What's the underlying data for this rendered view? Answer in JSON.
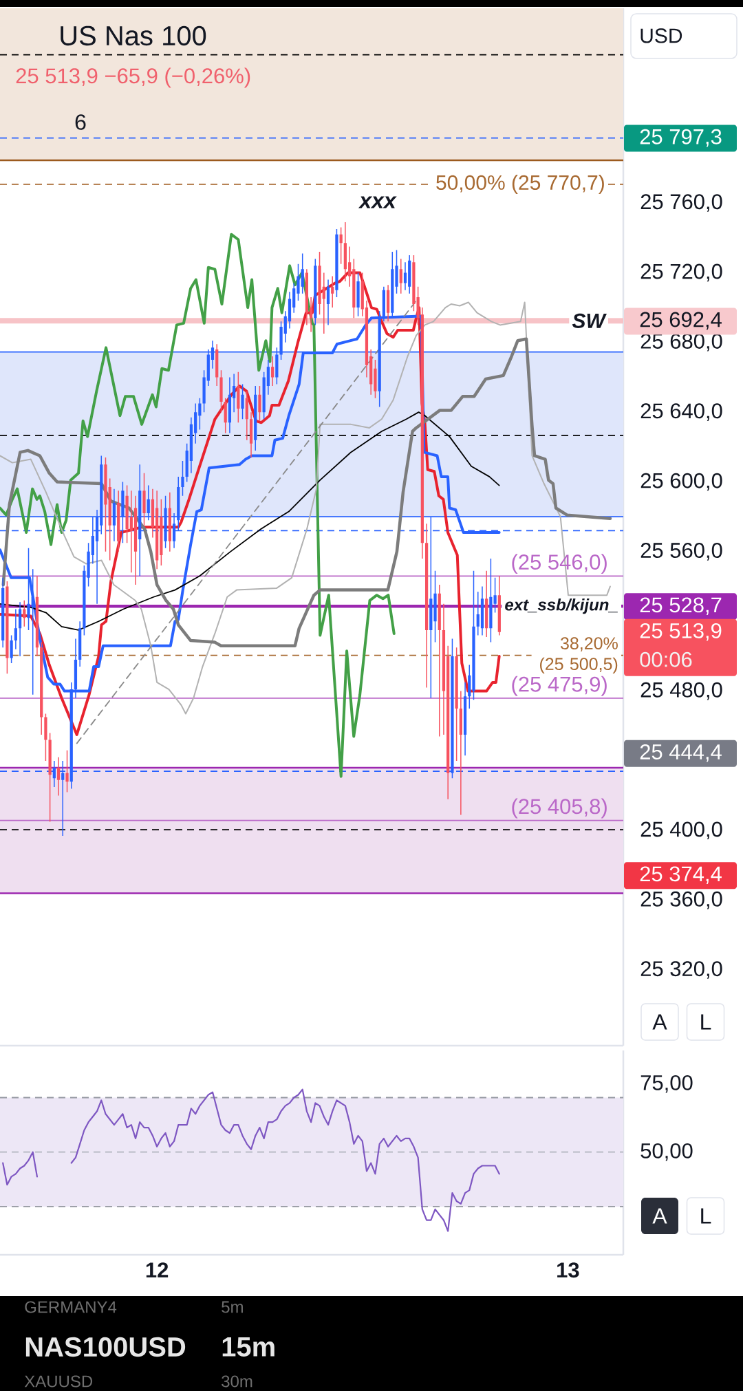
{
  "chart_data": [
    {
      "type": "candlestick",
      "title": "US Nas 100",
      "subtitle": "25 513,9 −65,9 (−0,26%)",
      "x": [
        11.625,
        11.6354,
        11.6458,
        11.6563,
        11.6667,
        11.6771,
        11.6875,
        11.6979,
        11.7083,
        11.7188,
        11.7292,
        11.7396,
        11.75,
        11.7604,
        11.7708,
        11.7813,
        11.7917,
        11.8021,
        11.8125,
        11.8229,
        11.8333,
        11.8438,
        11.8542,
        11.8646,
        11.875,
        11.8854,
        11.8958,
        11.9063,
        11.9167,
        11.9271,
        11.9375,
        11.9479,
        11.9583,
        11.9688,
        11.9792,
        11.9896,
        12,
        12.0104,
        12.0208,
        12.0313,
        12.0417,
        12.0521,
        12.0625,
        12.0729,
        12.0833,
        12.0938,
        12.1042,
        12.1146,
        12.125,
        12.1354,
        12.1458,
        12.1563,
        12.1667,
        12.1771,
        12.1875,
        12.1979,
        12.2083,
        12.2188,
        12.2292,
        12.2396,
        12.25,
        12.2604,
        12.2708,
        12.2813,
        12.2917,
        12.3021,
        12.3125,
        12.3229,
        12.3333,
        12.3438,
        12.3542,
        12.3646,
        12.375,
        12.3854,
        12.3958,
        12.4063,
        12.4167,
        12.4271,
        12.4375,
        12.4479,
        12.4583,
        12.4688,
        12.4792,
        12.4896,
        12.5,
        12.5104,
        12.5208,
        12.5313,
        12.5417,
        12.5521,
        12.5625,
        12.5729,
        12.5833,
        12.5938,
        12.6042,
        12.6146,
        12.625,
        12.6354,
        12.6458,
        12.6563,
        12.6667,
        12.6771,
        12.6875,
        12.6979,
        12.7083,
        12.7188,
        12.7292,
        12.7396,
        12.75,
        12.7604,
        12.7708,
        12.7813,
        12.7917,
        12.8021,
        12.8125,
        12.8229,
        12.8333
      ],
      "ohlc": [
        [
          25509,
          25545,
          25505,
          25539
        ],
        [
          25540,
          25543,
          25490,
          25499
        ],
        [
          25499,
          25512,
          25496,
          25509
        ],
        [
          25509,
          25527,
          25504,
          25516
        ],
        [
          25516,
          25531,
          25500,
          25527
        ],
        [
          25527,
          25532,
          25517,
          25522
        ],
        [
          25522,
          25562,
          25515,
          25530
        ],
        [
          25528,
          25550,
          25478,
          25534
        ],
        [
          25534,
          25546,
          25500,
          25505
        ],
        [
          25505,
          25508,
          25455,
          25465
        ],
        [
          25465,
          25467,
          25440,
          25452
        ],
        [
          25452,
          25456,
          25405,
          25432
        ],
        [
          25430,
          25440,
          25425,
          25436
        ],
        [
          25436,
          25442,
          25420,
          25429
        ],
        [
          25429,
          25440,
          25397,
          25433
        ],
        [
          25433,
          25446,
          25422,
          25428
        ],
        [
          25428,
          25485,
          25424,
          25481
        ],
        [
          25481,
          25510,
          25476,
          25498
        ],
        [
          25498,
          25520,
          25494,
          25516
        ],
        [
          25516,
          25552,
          25512,
          25549
        ],
        [
          25545,
          25565,
          25540,
          25560
        ],
        [
          25558,
          25580,
          25553,
          25569
        ],
        [
          25566,
          25584,
          25530,
          25580
        ],
        [
          25575,
          25615,
          25570,
          25610
        ],
        [
          25610,
          25614,
          25560,
          25587
        ],
        [
          25597,
          25602,
          25555,
          25575
        ],
        [
          25575,
          25596,
          25566,
          25588
        ],
        [
          25588,
          25595,
          25560,
          25566
        ],
        [
          25580,
          25600,
          25565,
          25595
        ],
        [
          25592,
          25598,
          25565,
          25573
        ],
        [
          25580,
          25595,
          25548,
          25572
        ],
        [
          25585,
          25592,
          25541,
          25560
        ],
        [
          25567,
          25610,
          25546,
          25595
        ],
        [
          25595,
          25605,
          25575,
          25582
        ],
        [
          25582,
          25598,
          25578,
          25590
        ],
        [
          25590,
          25596,
          25568,
          25574
        ],
        [
          25585,
          25595,
          25550,
          25555
        ],
        [
          25580,
          25590,
          25552,
          25558
        ],
        [
          25566,
          25592,
          25562,
          25585
        ],
        [
          25585,
          25594,
          25560,
          25566
        ],
        [
          25566,
          25582,
          25562,
          25576
        ],
        [
          25578,
          25603,
          25572,
          25597
        ],
        [
          25597,
          25612,
          25592,
          25603
        ],
        [
          25603,
          25622,
          25600,
          25618
        ],
        [
          25612,
          25637,
          25605,
          25633
        ],
        [
          25628,
          25645,
          25622,
          25640
        ],
        [
          25638,
          25648,
          25630,
          25645
        ],
        [
          25645,
          25664,
          25640,
          25660
        ],
        [
          25658,
          25676,
          25655,
          25673
        ],
        [
          25670,
          25681,
          25665,
          25677
        ],
        [
          25676,
          25679,
          25655,
          25660
        ],
        [
          25660,
          25664,
          25640,
          25646
        ],
        [
          25646,
          25648,
          25628,
          25634
        ],
        [
          25634,
          25660,
          25628,
          25650
        ],
        [
          25648,
          25662,
          25640,
          25655
        ],
        [
          25655,
          25663,
          25634,
          25642
        ],
        [
          25642,
          25656,
          25636,
          25650
        ],
        [
          25648,
          25652,
          25624,
          25636
        ],
        [
          25636,
          25640,
          25614,
          25622
        ],
        [
          25624,
          25655,
          25618,
          25650
        ],
        [
          25650,
          25655,
          25635,
          25640
        ],
        [
          25640,
          25663,
          25636,
          25660
        ],
        [
          25655,
          25670,
          25650,
          25666
        ],
        [
          25666,
          25672,
          25655,
          25660
        ],
        [
          25660,
          25677,
          25656,
          25673
        ],
        [
          25673,
          25692,
          25670,
          25689
        ],
        [
          25685,
          25698,
          25680,
          25695
        ],
        [
          25692,
          25709,
          25688,
          25705
        ],
        [
          25700,
          25714,
          25697,
          25711
        ],
        [
          25708,
          25725,
          25704,
          25718
        ],
        [
          25712,
          25731,
          25708,
          25722
        ],
        [
          25720,
          25722,
          25690,
          25697
        ],
        [
          25700,
          25706,
          25686,
          25694
        ],
        [
          25694,
          25728,
          25690,
          25724
        ],
        [
          25724,
          25732,
          25696,
          25702
        ],
        [
          25712,
          25720,
          25685,
          25705
        ],
        [
          25702,
          25716,
          25690,
          25712
        ],
        [
          25712,
          25718,
          25700,
          25708
        ],
        [
          25710,
          25745,
          25706,
          25742
        ],
        [
          25742,
          25746,
          25725,
          25737
        ],
        [
          25737,
          25749,
          25715,
          25722
        ],
        [
          25726,
          25735,
          25712,
          25718
        ],
        [
          25722,
          25728,
          25694,
          25700
        ],
        [
          25700,
          25720,
          25695,
          25715
        ],
        [
          25715,
          25720,
          25695,
          25699
        ],
        [
          25700,
          25704,
          25660,
          25667
        ],
        [
          25672,
          25676,
          25650,
          25656
        ],
        [
          25665,
          25670,
          25648,
          25652
        ],
        [
          25652,
          25698,
          25643,
          25695
        ],
        [
          25695,
          25712,
          25692,
          25710
        ],
        [
          25710,
          25713,
          25692,
          25697
        ],
        [
          25697,
          25732,
          25694,
          25722
        ],
        [
          25712,
          25733,
          25708,
          25724
        ],
        [
          25722,
          25728,
          25708,
          25714
        ],
        [
          25714,
          25726,
          25710,
          25720
        ],
        [
          25712,
          25730,
          25708,
          25727
        ],
        [
          25726,
          25730,
          25698,
          25702
        ],
        [
          25706,
          25712,
          25690,
          25694
        ],
        [
          25696,
          25700,
          25556,
          25565
        ],
        [
          25565,
          25576,
          25482,
          25515
        ],
        [
          25515,
          25580,
          25476,
          25533
        ],
        [
          25520,
          25549,
          25508,
          25536
        ],
        [
          25536,
          25541,
          25454,
          25515
        ],
        [
          25515,
          25530,
          25455,
          25480
        ],
        [
          25500,
          25506,
          25418,
          25433
        ],
        [
          25433,
          25510,
          25430,
          25500
        ],
        [
          25500,
          25505,
          25440,
          25470
        ],
        [
          25470,
          25480,
          25409,
          25455
        ],
        [
          25455,
          25485,
          25443,
          25477
        ],
        [
          25477,
          25495,
          25470,
          25489
        ],
        [
          25480,
          25549,
          25475,
          25517
        ],
        [
          25517,
          25537,
          25512,
          25524
        ],
        [
          25516,
          25540,
          25512,
          25533
        ],
        [
          25533,
          25549,
          25511,
          25516
        ],
        [
          25516,
          25556,
          25508,
          25534
        ],
        [
          25530,
          25545,
          25525,
          25535
        ],
        [
          25535,
          25546,
          25512,
          25513.9
        ]
      ],
      "series": [
        {
          "type": "line",
          "color": "#43a047",
          "x": [
            11.618,
            11.633,
            11.648,
            11.66,
            11.675,
            11.682,
            11.697,
            11.708,
            11.715,
            11.727,
            11.742,
            11.757,
            11.768,
            11.779,
            11.79,
            11.809,
            11.82,
            11.831,
            11.853,
            11.876,
            11.91,
            11.923,
            11.943,
            11.963,
            11.989,
            11.998,
            12.012,
            12.028,
            12.048,
            12.065,
            12.082,
            12.095,
            12.115,
            12.125,
            12.141,
            12.158,
            12.181,
            12.198,
            12.221,
            12.231,
            12.248,
            12.265,
            12.275,
            12.28,
            12.294,
            12.304,
            12.323,
            12.336,
            12.353,
            12.378,
            12.382,
            12.397,
            12.418,
            12.448,
            12.462,
            12.479,
            12.494,
            12.518,
            12.535,
            12.55,
            12.563,
            12.577
          ],
          "values": [
            25585,
            25581,
            25590,
            25596,
            25579,
            25571,
            25596,
            25590,
            25592,
            25583,
            25564,
            25587,
            25571,
            25578,
            25601,
            25605,
            25635,
            25626,
            25652,
            25677,
            25638,
            25649,
            25649,
            25633,
            25650,
            25643,
            25665,
            25664,
            25690,
            25691,
            25711,
            25716,
            25691,
            25723,
            25722,
            25702,
            25742,
            25739,
            25700,
            25716,
            25664,
            25681,
            25669,
            25700,
            25711,
            25697,
            25724,
            25713,
            25720,
            25691,
            25690,
            25512,
            25535,
            25431,
            25503,
            25454,
            25478,
            25532,
            25535,
            25533,
            25535,
            25513
          ]
        },
        {
          "type": "line",
          "color": "#e8232e",
          "x": [
            11.618,
            11.693,
            11.715,
            11.738,
            11.768,
            11.805,
            11.835,
            11.858,
            11.865,
            11.876,
            11.888,
            11.913,
            11.962,
            12.052,
            12.059,
            12.078,
            12.097,
            12.119,
            12.141,
            12.181,
            12.201,
            12.218,
            12.241,
            12.254,
            12.274,
            12.28,
            12.297,
            12.32,
            12.343,
            12.363,
            12.378,
            12.385,
            12.406,
            12.433,
            12.445,
            12.465,
            12.494,
            12.508,
            12.522,
            12.535,
            12.547,
            12.56,
            12.575,
            12.586,
            12.624,
            12.631,
            12.638,
            12.645,
            12.652,
            12.659,
            12.675,
            12.686,
            12.697,
            12.708,
            12.731,
            12.742,
            12.757,
            12.802,
            12.817,
            12.825,
            12.833
          ],
          "values": [
            25524,
            25523,
            25513,
            25495,
            25476,
            25455,
            25478,
            25500,
            25518,
            25520,
            25543,
            25571,
            25574,
            25574,
            25577,
            25590,
            25604,
            25620,
            25636,
            25650,
            25655,
            25652,
            25635,
            25634,
            25638,
            25644,
            25644,
            25658,
            25680,
            25697,
            25697,
            25707,
            25710,
            25714,
            25715,
            25720,
            25720,
            25710,
            25700,
            25699,
            25692,
            25685,
            25683,
            25687,
            25687,
            25694,
            25700,
            25645,
            25634,
            25607,
            25606,
            25592,
            25590,
            25571,
            25558,
            25496,
            25480,
            25480,
            25485,
            25485,
            25500
          ]
        },
        {
          "type": "line",
          "color": "#2962ff",
          "x": [
            11.618,
            11.645,
            11.69,
            11.701,
            11.715,
            11.734,
            11.749,
            11.764,
            11.775,
            11.835,
            11.846,
            11.858,
            11.869,
            12.033,
            12.044,
            12.052,
            12.063,
            12.082,
            12.097,
            12.108,
            12.127,
            12.201,
            12.216,
            12.231,
            12.28,
            12.287,
            12.306,
            12.321,
            12.346,
            12.356,
            12.427,
            12.438,
            12.487,
            12.508,
            12.522,
            12.631,
            12.643,
            12.65,
            12.682,
            12.692,
            12.708,
            12.712,
            12.727,
            12.746,
            12.833
          ],
          "values": [
            25561,
            25545,
            25545,
            25530,
            25510,
            25488,
            25484,
            25484,
            25480,
            25480,
            25494,
            25494,
            25506,
            25506,
            25520,
            25521,
            25538,
            25564,
            25583,
            25584,
            25608,
            25610,
            25613,
            25615,
            25615,
            25624,
            25625,
            25638,
            25656,
            25674,
            25674,
            25679,
            25682,
            25690,
            25694,
            25695,
            25695,
            25617,
            25615,
            25603,
            25603,
            25585,
            25584,
            25571,
            25571
          ]
        },
        {
          "type": "line",
          "color": "#000000",
          "x": [
            11.618,
            11.693,
            11.73,
            11.768,
            11.809,
            11.858,
            11.918,
            11.992,
            12.044,
            12.104,
            12.179,
            12.253,
            12.321,
            12.397,
            12.472,
            12.547,
            12.607,
            12.637,
            12.652,
            12.712,
            12.765,
            12.809,
            12.833
          ],
          "values": [
            25530,
            25528,
            25525,
            25517,
            25515,
            25520,
            25527,
            25534,
            25538,
            25546,
            25560,
            25573,
            25583,
            25601,
            25617,
            25629,
            25636,
            25640,
            25638,
            25626,
            25609,
            25603,
            25598
          ]
        },
        {
          "type": "line",
          "color": "#b2b2b2",
          "x": [
            11.618,
            11.648,
            11.693,
            11.73,
            11.775,
            11.798,
            11.828,
            11.865,
            11.895,
            11.947,
            11.962,
            11.985,
            12,
            12.029,
            12.059,
            12.07,
            12.089,
            12.111,
            12.141,
            12.171,
            12.194,
            12.291,
            12.328,
            12.365,
            12.388,
            12.397,
            12.472,
            12.517,
            12.547,
            12.575,
            12.61,
            12.631,
            12.652,
            12.673,
            12.702,
            12.716,
            12.737,
            12.758,
            12.779,
            12.814,
            12.835,
            12.885,
            12.895,
            12.913,
            12.942,
            12.982,
            13.001,
            13.095,
            13.103
          ],
          "values": [
            25615,
            25611,
            25613,
            25594,
            25569,
            25557,
            25553,
            25555,
            25541,
            25532,
            25527,
            25506,
            25485,
            25481,
            25472,
            25467,
            25476,
            25494,
            25513,
            25534,
            25538,
            25539,
            25545,
            25573,
            25596,
            25633,
            25633,
            25631,
            25636,
            25647,
            25672,
            25684,
            25690,
            25692,
            25700,
            25702,
            25701,
            25703,
            25697,
            25692,
            25690,
            25692,
            25703,
            25615,
            25599,
            25580,
            25535,
            25535,
            25540
          ]
        },
        {
          "type": "line",
          "color": "#7c7c7c",
          "x": [
            11.626,
            11.641,
            11.667,
            11.686,
            11.715,
            11.738,
            11.757,
            11.865,
            11.888,
            11.932,
            11.97,
            11.985,
            12,
            12.022,
            12.04,
            12.052,
            12.082,
            12.141,
            12.156,
            12.336,
            12.346,
            12.382,
            12.397,
            12.562,
            12.584,
            12.599,
            12.622,
            12.631,
            12.688,
            12.716,
            12.744,
            12.772,
            12.8,
            12.843,
            12.863,
            12.878,
            12.899,
            12.913,
            12.919,
            12.945,
            12.953,
            12.964,
            12.971,
            12.998,
            13.103
          ],
          "values": [
            25541,
            25587,
            25617,
            25618,
            25615,
            25605,
            25600,
            25599,
            25589,
            25585,
            25573,
            25560,
            25541,
            25532,
            25527,
            25518,
            25509,
            25508,
            25506,
            25506,
            25516,
            25535,
            25538,
            25538,
            25560,
            25594,
            25629,
            25631,
            25641,
            25641,
            25649,
            25649,
            25659,
            25661,
            25672,
            25681,
            25682,
            25632,
            25615,
            25613,
            25601,
            25599,
            25585,
            25581,
            25579
          ]
        },
        {
          "type": "line",
          "color": "#8a8a8a",
          "line_style": "dashed",
          "x": [
            11.805,
            12.631
          ],
          "values": [
            25450,
            25704
          ]
        }
      ],
      "xlim": [
        11.618,
        13.135
      ],
      "ylim": [
        25276.6,
        25871.7
      ],
      "xticks": [
        12,
        13
      ],
      "yticks": [
        {
          "value": 25320,
          "label": "25 320,0"
        },
        {
          "value": 25360,
          "label": "25 360,0"
        },
        {
          "value": 25400,
          "label": "25 400,0"
        },
        {
          "value": 25480,
          "label": "25 480,0"
        },
        {
          "value": 25560,
          "label": "25 560,0"
        },
        {
          "value": 25600,
          "label": "25 600,0"
        },
        {
          "value": 25640,
          "label": "25 640,0"
        },
        {
          "value": 25680,
          "label": "25 680,0"
        },
        {
          "value": 25720,
          "label": "25 720,0"
        },
        {
          "value": 25760,
          "label": "25 760,0"
        }
      ],
      "tick_labels": "y",
      "ref_lines": [
        {
          "axis": "y",
          "value": 25845,
          "color": "#000000",
          "line_style": "dashed"
        },
        {
          "axis": "y",
          "value": 25797.3,
          "color": "#2962ff",
          "line_style": "dashed"
        },
        {
          "axis": "y",
          "value": 25784.5,
          "color": "#9c5a1e"
        },
        {
          "axis": "y",
          "value": 25770.7,
          "label": "50,00% (25 770,7)",
          "color": "#a86a32",
          "line_style": "dashed"
        },
        {
          "axis": "y",
          "value": 25692.4,
          "label": "SW",
          "color": "#f7c3c7"
        },
        {
          "axis": "y",
          "value": 25674.5,
          "color": "#2962ff"
        },
        {
          "axis": "y",
          "value": 25626.7,
          "color": "#000000",
          "line_style": "dashed"
        },
        {
          "axis": "y",
          "value": 25580,
          "color": "#2962ff"
        },
        {
          "axis": "y",
          "value": 25572,
          "color": "#2962ff",
          "line_style": "dashed"
        },
        {
          "axis": "y",
          "value": 25546.0,
          "label": "(25 546,0)",
          "color": "#ba68c8"
        },
        {
          "axis": "y",
          "value": 25528.7,
          "label": "ext_ssb/kijun_",
          "color": "#9c27b0"
        },
        {
          "axis": "y",
          "value": 25500.5,
          "label": "38,20% (25 500,5)",
          "color": "#a86a32",
          "line_style": "dashed"
        },
        {
          "axis": "y",
          "value": 25475.9,
          "label": "(25 475,9)",
          "color": "#ba68c8"
        },
        {
          "axis": "y",
          "value": 25436,
          "color": "#9c27b0"
        },
        {
          "axis": "y",
          "value": 25434,
          "color": "#2962ff",
          "line_style": "dashed"
        },
        {
          "axis": "y",
          "value": 25405.8,
          "label": "(25 405,8)",
          "color": "#ba68c8"
        },
        {
          "axis": "y",
          "value": 25400.5,
          "color": "#000000",
          "line_style": "dashed"
        },
        {
          "axis": "y",
          "value": 25364,
          "color": "#9c27b0"
        }
      ],
      "bands": [
        {
          "axis": "y",
          "from": 25784.5,
          "to": 25871.7,
          "color": "#f2e6dc"
        },
        {
          "axis": "y",
          "from": 25580,
          "to": 25674.5,
          "color": "#dfe6fb"
        },
        {
          "axis": "y",
          "from": 25364,
          "to": 25436,
          "color": "#efdff0"
        }
      ],
      "annotations": [
        "xxx",
        "25 797,3",
        "25 692,4",
        "25 528,7",
        "25 513,9",
        "00:06",
        "25 444,4",
        "25 374,4",
        "6",
        "USD",
        "A",
        "L"
      ]
    },
    {
      "type": "line",
      "color": "#7e57c2",
      "x": [
        11.625,
        11.6354,
        11.6458,
        11.6563,
        11.6667,
        11.6771,
        11.6875,
        11.6979,
        11.7083,
        11.7188,
        11.7292,
        11.7396,
        11.75,
        11.7604,
        11.7708,
        11.7813,
        11.7917,
        11.8021,
        11.8125,
        11.8229,
        11.8333,
        11.8438,
        11.8542,
        11.8646,
        11.875,
        11.8854,
        11.8958,
        11.9063,
        11.9167,
        11.9271,
        11.9375,
        11.9479,
        11.9583,
        11.9688,
        11.9792,
        11.9896,
        12,
        12.0104,
        12.0208,
        12.0313,
        12.0417,
        12.0521,
        12.0625,
        12.0729,
        12.0833,
        12.0938,
        12.1042,
        12.1146,
        12.125,
        12.1354,
        12.1458,
        12.1563,
        12.1667,
        12.1771,
        12.1875,
        12.1979,
        12.2083,
        12.2188,
        12.2292,
        12.2396,
        12.25,
        12.2604,
        12.2708,
        12.2813,
        12.2917,
        12.3021,
        12.3125,
        12.3229,
        12.3333,
        12.3438,
        12.3542,
        12.3646,
        12.375,
        12.3854,
        12.3958,
        12.4063,
        12.4167,
        12.4271,
        12.4375,
        12.4479,
        12.4583,
        12.4688,
        12.4792,
        12.4896,
        12.5,
        12.5104,
        12.5208,
        12.5313,
        12.5417,
        12.5521,
        12.5625,
        12.5729,
        12.5833,
        12.5938,
        12.6042,
        12.6146,
        12.625,
        12.6354,
        12.6458,
        12.6563,
        12.6667,
        12.6771,
        12.6875,
        12.6979,
        12.7083,
        12.7188,
        12.7292,
        12.7396,
        12.75,
        12.7604,
        12.7708,
        12.7813,
        12.7917,
        12.8021,
        12.8125,
        12.8229,
        12.8333
      ],
      "values": [
        46,
        38,
        41,
        42,
        44,
        45,
        47,
        50,
        41,
        null,
        null,
        null,
        null,
        null,
        null,
        null,
        46,
        48,
        53,
        58,
        61,
        63,
        65,
        69,
        64,
        62,
        60,
        62,
        64,
        59,
        60,
        55,
        61,
        59,
        59,
        56,
        52,
        55,
        57,
        52,
        54,
        60,
        60,
        60,
        66,
        64,
        67,
        69,
        71,
        72,
        66,
        60,
        58,
        57,
        60,
        60,
        56,
        53,
        51,
        56,
        59,
        55,
        61,
        61,
        62,
        65,
        67,
        68,
        70,
        71,
        73,
        65,
        61,
        68,
        67,
        63,
        60,
        65,
        69,
        68,
        67,
        61,
        53,
        56,
        54,
        43,
        46,
        42,
        53,
        55,
        52,
        54,
        56,
        54,
        55,
        55,
        52,
        48,
        29,
        25,
        25,
        29,
        27,
        25,
        21,
        35,
        32,
        31,
        35,
        36,
        42,
        44,
        45,
        45,
        45,
        45,
        42
      ],
      "xlim": [
        11.618,
        13.135
      ],
      "ylim": [
        12.3,
        87.3
      ],
      "xticks": [
        12,
        13
      ],
      "yticks": [
        {
          "value": 50,
          "label": "50,00"
        },
        {
          "value": 75,
          "label": "75,00"
        }
      ],
      "ref_lines": [
        {
          "axis": "y",
          "value": 70,
          "color": "#9598a1",
          "line_style": "dashed"
        },
        {
          "axis": "y",
          "value": 50,
          "color": "#b2b5be",
          "line_style": "dashed"
        },
        {
          "axis": "y",
          "value": 30,
          "color": "#9598a1",
          "line_style": "dashed"
        }
      ],
      "bands": [
        {
          "axis": "y",
          "from": 30,
          "to": 70,
          "color": "#ede7f6"
        }
      ],
      "annotations": [
        "A",
        "L",
        "GERMANY4",
        "5m",
        "NAS100USD",
        "15m",
        "XAUUSD",
        "30m"
      ]
    }
  ]
}
